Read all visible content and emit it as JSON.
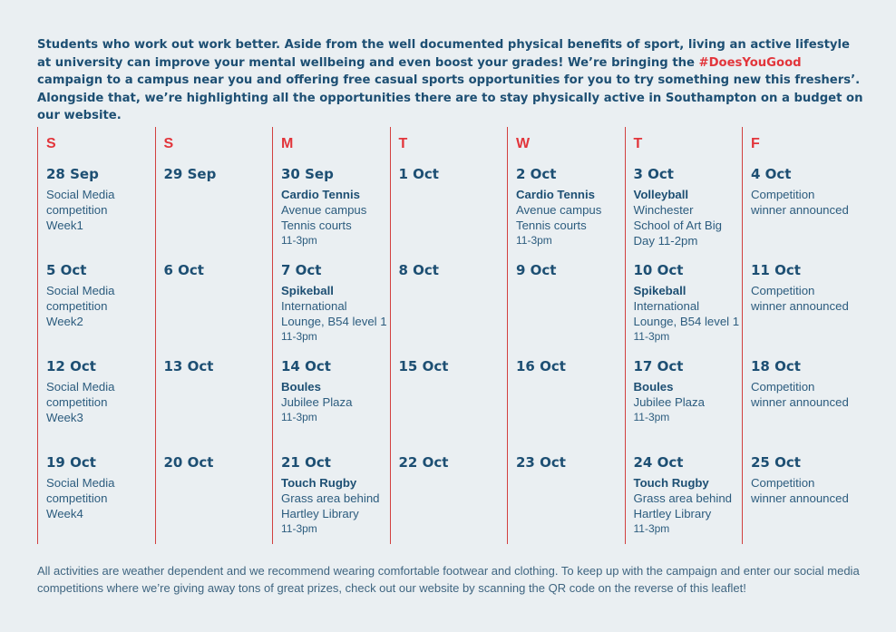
{
  "intro": {
    "text_before": "Students who work out work better. Aside from the well documented physical benefits of sport, living an active lifestyle at university can improve your mental wellbeing and even boost your grades! We’re bringing the ",
    "hashtag": "#DoesYouGood",
    "text_after": " campaign to a campus near you and offering free casual sports opportunities for you to try something new this freshers’. Alongside that, we’re highlighting all the opportunities there are to stay physically active in Southampton on a budget on our website."
  },
  "colors": {
    "accent_red": "#e2353b",
    "navy": "#1d4f73",
    "background": "#eaeff2"
  },
  "days": [
    "S",
    "S",
    "M",
    "T",
    "W",
    "T",
    "F"
  ],
  "weeks": [
    [
      {
        "date": "28 Sep",
        "title": "",
        "lines": [
          "Social Media",
          "competition",
          "Week1"
        ],
        "time": ""
      },
      {
        "date": "29 Sep",
        "title": "",
        "lines": [],
        "time": ""
      },
      {
        "date": "30 Sep",
        "title": "Cardio Tennis",
        "lines": [
          "Avenue campus",
          "Tennis courts"
        ],
        "time": "11-3pm"
      },
      {
        "date": "1 Oct",
        "title": "",
        "lines": [],
        "time": ""
      },
      {
        "date": "2 Oct",
        "title": "Cardio Tennis",
        "lines": [
          "Avenue campus",
          "Tennis courts"
        ],
        "time": "11-3pm"
      },
      {
        "date": "3 Oct",
        "title": "Volleyball",
        "lines": [
          "Winchester",
          "School of Art Big",
          "Day 11-2pm"
        ],
        "time": ""
      },
      {
        "date": "4 Oct",
        "title": "",
        "lines": [
          "Competition",
          "winner announced"
        ],
        "time": ""
      }
    ],
    [
      {
        "date": "5 Oct",
        "title": "",
        "lines": [
          "Social Media",
          "competition",
          "Week2"
        ],
        "time": ""
      },
      {
        "date": "6 Oct",
        "title": "",
        "lines": [],
        "time": ""
      },
      {
        "date": "7 Oct",
        "title": "Spikeball",
        "lines": [
          "International",
          "Lounge, B54 level 1"
        ],
        "time": "11-3pm"
      },
      {
        "date": "8 Oct",
        "title": "",
        "lines": [],
        "time": ""
      },
      {
        "date": "9 Oct",
        "title": "",
        "lines": [],
        "time": ""
      },
      {
        "date": "10 Oct",
        "title": "Spikeball",
        "lines": [
          "International",
          "Lounge, B54 level 1"
        ],
        "time": "11-3pm"
      },
      {
        "date": "11 Oct",
        "title": "",
        "lines": [
          "Competition",
          "winner announced"
        ],
        "time": ""
      }
    ],
    [
      {
        "date": "12 Oct",
        "title": "",
        "lines": [
          "Social Media",
          "competition",
          "Week3"
        ],
        "time": ""
      },
      {
        "date": "13 Oct",
        "title": "",
        "lines": [],
        "time": ""
      },
      {
        "date": "14 Oct",
        "title": "Boules",
        "lines": [
          "Jubilee Plaza"
        ],
        "time": "11-3pm"
      },
      {
        "date": "15 Oct",
        "title": "",
        "lines": [],
        "time": ""
      },
      {
        "date": "16 Oct",
        "title": "",
        "lines": [],
        "time": ""
      },
      {
        "date": "17 Oct",
        "title": "Boules",
        "lines": [
          "Jubilee Plaza"
        ],
        "time": "11-3pm"
      },
      {
        "date": "18 Oct",
        "title": "",
        "lines": [
          "Competition",
          "winner announced"
        ],
        "time": ""
      }
    ],
    [
      {
        "date": "19 Oct",
        "title": "",
        "lines": [
          "Social Media",
          "competition",
          "Week4"
        ],
        "time": ""
      },
      {
        "date": "20 Oct",
        "title": "",
        "lines": [],
        "time": ""
      },
      {
        "date": "21 Oct",
        "title": "Touch Rugby",
        "lines": [
          "Grass area behind",
          "Hartley Library"
        ],
        "time": "11-3pm"
      },
      {
        "date": "22 Oct",
        "title": "",
        "lines": [],
        "time": ""
      },
      {
        "date": "23 Oct",
        "title": "",
        "lines": [],
        "time": ""
      },
      {
        "date": "24 Oct",
        "title": "Touch Rugby",
        "lines": [
          "Grass area behind",
          "Hartley Library"
        ],
        "time": "11-3pm"
      },
      {
        "date": "25 Oct",
        "title": "",
        "lines": [
          "Competition",
          "winner announced"
        ],
        "time": ""
      }
    ]
  ],
  "footer": "All activities are weather dependent and we recommend wearing comfortable footwear and clothing. To keep up with the campaign and enter our social media competitions where we’re giving away tons of great prizes, check out our website by scanning the QR code on the reverse of this leaflet!"
}
